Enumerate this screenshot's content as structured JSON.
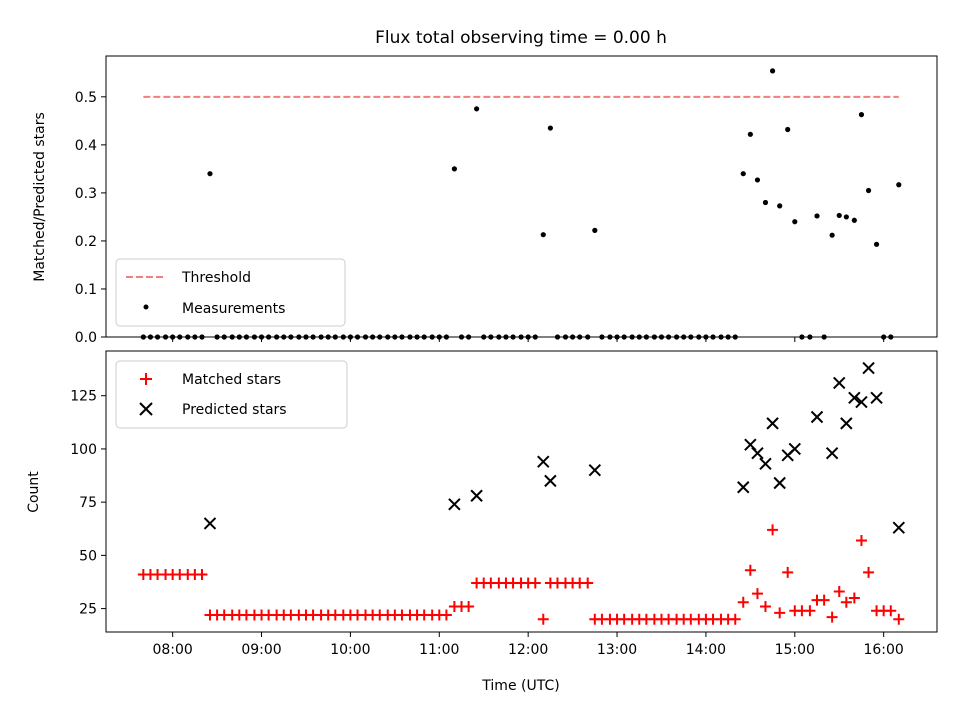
{
  "chart_data": {
    "title": "Flux total observing time = 0.00 h",
    "x_axis": {
      "label": "Time (UTC)",
      "unit": "hours",
      "range": [
        7.25,
        16.6
      ],
      "ticks": [
        {
          "value": 8,
          "label": "08:00"
        },
        {
          "value": 9,
          "label": "09:00"
        },
        {
          "value": 10,
          "label": "10:00"
        },
        {
          "value": 11,
          "label": "11:00"
        },
        {
          "value": 12,
          "label": "12:00"
        },
        {
          "value": 13,
          "label": "13:00"
        },
        {
          "value": 14,
          "label": "14:00"
        },
        {
          "value": 15,
          "label": "15:00"
        },
        {
          "value": 16,
          "label": "16:00"
        }
      ]
    },
    "panels": [
      {
        "type": "scatter",
        "ylabel": "Matched/Predicted stars",
        "ylim": [
          0,
          0.585
        ],
        "yticks": [
          0.0,
          0.1,
          0.2,
          0.3,
          0.4,
          0.5
        ],
        "ytick_labels": [
          "0.0",
          "0.1",
          "0.2",
          "0.3",
          "0.4",
          "0.5"
        ],
        "legend_position": "lower-left",
        "threshold": {
          "name": "Threshold",
          "value": 0.5,
          "x_range": [
            7.67,
            16.17
          ],
          "color": "#f08080"
        },
        "measurements": {
          "name": "Measurements",
          "color": "#000000",
          "points": [
            [
              7.67,
              0
            ],
            [
              7.75,
              0
            ],
            [
              7.83,
              0
            ],
            [
              7.92,
              0
            ],
            [
              8.0,
              0
            ],
            [
              8.08,
              0
            ],
            [
              8.17,
              0
            ],
            [
              8.25,
              0
            ],
            [
              8.33,
              0
            ],
            [
              8.42,
              0.34
            ],
            [
              8.5,
              0
            ],
            [
              8.58,
              0
            ],
            [
              8.67,
              0
            ],
            [
              8.75,
              0
            ],
            [
              8.83,
              0
            ],
            [
              8.92,
              0
            ],
            [
              9.0,
              0
            ],
            [
              9.08,
              0
            ],
            [
              9.17,
              0
            ],
            [
              9.25,
              0
            ],
            [
              9.33,
              0
            ],
            [
              9.42,
              0
            ],
            [
              9.5,
              0
            ],
            [
              9.58,
              0
            ],
            [
              9.67,
              0
            ],
            [
              9.75,
              0
            ],
            [
              9.83,
              0
            ],
            [
              9.92,
              0
            ],
            [
              10.0,
              0
            ],
            [
              10.08,
              0
            ],
            [
              10.17,
              0
            ],
            [
              10.25,
              0
            ],
            [
              10.33,
              0
            ],
            [
              10.42,
              0
            ],
            [
              10.5,
              0
            ],
            [
              10.58,
              0
            ],
            [
              10.67,
              0
            ],
            [
              10.75,
              0
            ],
            [
              10.83,
              0
            ],
            [
              10.92,
              0
            ],
            [
              11.0,
              0
            ],
            [
              11.08,
              0
            ],
            [
              11.17,
              0.35
            ],
            [
              11.25,
              0
            ],
            [
              11.33,
              0
            ],
            [
              11.42,
              0.475
            ],
            [
              11.5,
              0
            ],
            [
              11.58,
              0
            ],
            [
              11.67,
              0
            ],
            [
              11.75,
              0
            ],
            [
              11.83,
              0
            ],
            [
              11.92,
              0
            ],
            [
              12.0,
              0
            ],
            [
              12.08,
              0
            ],
            [
              12.17,
              0.213
            ],
            [
              12.25,
              0.435
            ],
            [
              12.33,
              0
            ],
            [
              12.42,
              0
            ],
            [
              12.5,
              0
            ],
            [
              12.58,
              0
            ],
            [
              12.67,
              0
            ],
            [
              12.75,
              0.222
            ],
            [
              12.83,
              0
            ],
            [
              12.92,
              0
            ],
            [
              13.0,
              0
            ],
            [
              13.08,
              0
            ],
            [
              13.17,
              0
            ],
            [
              13.25,
              0
            ],
            [
              13.33,
              0
            ],
            [
              13.42,
              0
            ],
            [
              13.5,
              0
            ],
            [
              13.58,
              0
            ],
            [
              13.67,
              0
            ],
            [
              13.75,
              0
            ],
            [
              13.83,
              0
            ],
            [
              13.92,
              0
            ],
            [
              14.0,
              0
            ],
            [
              14.08,
              0
            ],
            [
              14.17,
              0
            ],
            [
              14.25,
              0
            ],
            [
              14.33,
              0
            ],
            [
              14.42,
              0.34
            ],
            [
              14.5,
              0.422
            ],
            [
              14.58,
              0.327
            ],
            [
              14.67,
              0.28
            ],
            [
              14.75,
              0.554
            ],
            [
              14.83,
              0.273
            ],
            [
              14.92,
              0.432
            ],
            [
              15.0,
              0.24
            ],
            [
              15.08,
              0
            ],
            [
              15.17,
              0
            ],
            [
              15.25,
              0.252
            ],
            [
              15.33,
              0
            ],
            [
              15.42,
              0.212
            ],
            [
              15.5,
              0.253
            ],
            [
              15.58,
              0.25
            ],
            [
              15.67,
              0.243
            ],
            [
              15.75,
              0.463
            ],
            [
              15.83,
              0.305
            ],
            [
              15.92,
              0.193
            ],
            [
              16.0,
              0
            ],
            [
              16.08,
              0
            ],
            [
              16.17,
              0.317
            ]
          ]
        }
      },
      {
        "type": "scatter",
        "ylabel": "Count",
        "ylim": [
          14,
          146
        ],
        "yticks": [
          25,
          50,
          75,
          100,
          125
        ],
        "ytick_labels": [
          "25",
          "50",
          "75",
          "100",
          "125"
        ],
        "legend_position": "upper-left",
        "matched": {
          "name": "Matched stars",
          "color": "#ff0000",
          "marker": "+",
          "points": [
            [
              7.67,
              41
            ],
            [
              7.75,
              41
            ],
            [
              7.83,
              41
            ],
            [
              7.92,
              41
            ],
            [
              8.0,
              41
            ],
            [
              8.08,
              41
            ],
            [
              8.17,
              41
            ],
            [
              8.25,
              41
            ],
            [
              8.33,
              41
            ],
            [
              8.42,
              22
            ],
            [
              8.5,
              22
            ],
            [
              8.58,
              22
            ],
            [
              8.67,
              22
            ],
            [
              8.75,
              22
            ],
            [
              8.83,
              22
            ],
            [
              8.92,
              22
            ],
            [
              9.0,
              22
            ],
            [
              9.08,
              22
            ],
            [
              9.17,
              22
            ],
            [
              9.25,
              22
            ],
            [
              9.33,
              22
            ],
            [
              9.42,
              22
            ],
            [
              9.5,
              22
            ],
            [
              9.58,
              22
            ],
            [
              9.67,
              22
            ],
            [
              9.75,
              22
            ],
            [
              9.83,
              22
            ],
            [
              9.92,
              22
            ],
            [
              10.0,
              22
            ],
            [
              10.08,
              22
            ],
            [
              10.17,
              22
            ],
            [
              10.25,
              22
            ],
            [
              10.33,
              22
            ],
            [
              10.42,
              22
            ],
            [
              10.5,
              22
            ],
            [
              10.58,
              22
            ],
            [
              10.67,
              22
            ],
            [
              10.75,
              22
            ],
            [
              10.83,
              22
            ],
            [
              10.92,
              22
            ],
            [
              11.0,
              22
            ],
            [
              11.08,
              22
            ],
            [
              11.17,
              26
            ],
            [
              11.25,
              26
            ],
            [
              11.33,
              26
            ],
            [
              11.42,
              37
            ],
            [
              11.5,
              37
            ],
            [
              11.58,
              37
            ],
            [
              11.67,
              37
            ],
            [
              11.75,
              37
            ],
            [
              11.83,
              37
            ],
            [
              11.92,
              37
            ],
            [
              12.0,
              37
            ],
            [
              12.08,
              37
            ],
            [
              12.17,
              20
            ],
            [
              12.25,
              37
            ],
            [
              12.33,
              37
            ],
            [
              12.42,
              37
            ],
            [
              12.5,
              37
            ],
            [
              12.58,
              37
            ],
            [
              12.67,
              37
            ],
            [
              12.75,
              20
            ],
            [
              12.83,
              20
            ],
            [
              12.92,
              20
            ],
            [
              13.0,
              20
            ],
            [
              13.08,
              20
            ],
            [
              13.17,
              20
            ],
            [
              13.25,
              20
            ],
            [
              13.33,
              20
            ],
            [
              13.42,
              20
            ],
            [
              13.5,
              20
            ],
            [
              13.58,
              20
            ],
            [
              13.67,
              20
            ],
            [
              13.75,
              20
            ],
            [
              13.83,
              20
            ],
            [
              13.92,
              20
            ],
            [
              14.0,
              20
            ],
            [
              14.08,
              20
            ],
            [
              14.17,
              20
            ],
            [
              14.25,
              20
            ],
            [
              14.33,
              20
            ],
            [
              14.42,
              28
            ],
            [
              14.5,
              43
            ],
            [
              14.58,
              32
            ],
            [
              14.67,
              26
            ],
            [
              14.75,
              62
            ],
            [
              14.83,
              23
            ],
            [
              14.92,
              42
            ],
            [
              15.0,
              24
            ],
            [
              15.08,
              24
            ],
            [
              15.17,
              24
            ],
            [
              15.25,
              29
            ],
            [
              15.33,
              29
            ],
            [
              15.42,
              21
            ],
            [
              15.5,
              33
            ],
            [
              15.58,
              28
            ],
            [
              15.67,
              30
            ],
            [
              15.75,
              57
            ],
            [
              15.83,
              42
            ],
            [
              15.92,
              24
            ],
            [
              16.0,
              24
            ],
            [
              16.08,
              24
            ],
            [
              16.17,
              20
            ]
          ]
        },
        "predicted": {
          "name": "Predicted stars",
          "color": "#000000",
          "marker": "x",
          "points": [
            [
              8.42,
              65
            ],
            [
              11.17,
              74
            ],
            [
              11.42,
              78
            ],
            [
              12.17,
              94
            ],
            [
              12.25,
              85
            ],
            [
              12.75,
              90
            ],
            [
              14.42,
              82
            ],
            [
              14.5,
              102
            ],
            [
              14.58,
              98
            ],
            [
              14.67,
              93
            ],
            [
              14.75,
              112
            ],
            [
              14.83,
              84
            ],
            [
              14.92,
              97
            ],
            [
              15.0,
              100
            ],
            [
              15.25,
              115
            ],
            [
              15.42,
              98
            ],
            [
              15.5,
              131
            ],
            [
              15.58,
              112
            ],
            [
              15.67,
              124
            ],
            [
              15.75,
              122
            ],
            [
              15.83,
              138
            ],
            [
              15.92,
              124
            ],
            [
              16.17,
              63
            ]
          ]
        }
      }
    ]
  }
}
